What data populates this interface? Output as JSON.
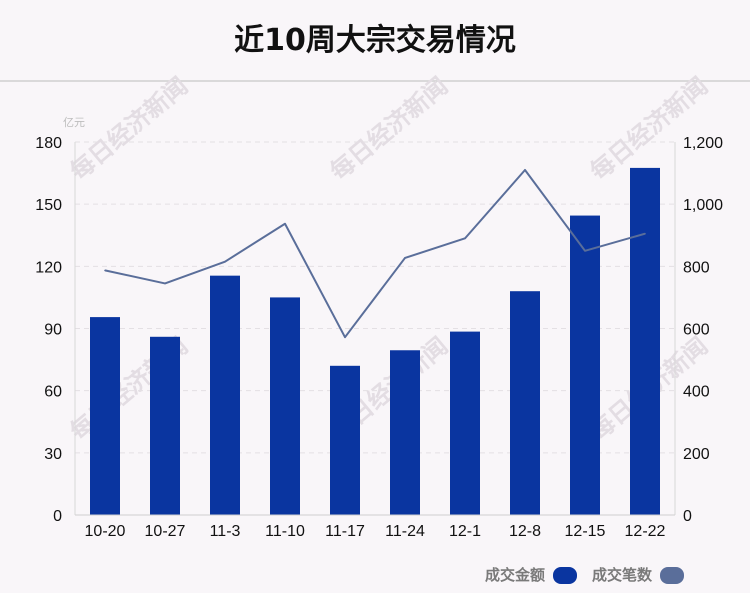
{
  "chart_data": {
    "type": "bar",
    "title": "近10周大宗交易情况",
    "unit_left": "亿元",
    "categories": [
      "10-20",
      "10-27",
      "11-3",
      "11-10",
      "11-17",
      "11-24",
      "12-1",
      "12-8",
      "12-15",
      "12-22"
    ],
    "series": [
      {
        "name": "成交金额",
        "type": "bar",
        "axis": "left",
        "color": "#0a35a0",
        "values": [
          95.5,
          86,
          115.5,
          105,
          72,
          79.5,
          88.5,
          108,
          144.5,
          167.5
        ]
      },
      {
        "name": "成交笔数",
        "type": "line",
        "axis": "right",
        "color": "#5a6e9a",
        "values": [
          787,
          745,
          815,
          937,
          572,
          827,
          890,
          1110,
          850,
          905
        ]
      }
    ],
    "y_left": {
      "ylim": [
        0,
        180
      ],
      "ticks": [
        0,
        30,
        60,
        90,
        120,
        150,
        180
      ]
    },
    "y_right": {
      "ylim": [
        0,
        1200
      ],
      "ticks": [
        0,
        200,
        400,
        600,
        800,
        1000,
        1200
      ],
      "tick_labels": [
        "0",
        "200",
        "400",
        "600",
        "800",
        "1,000",
        "1,200"
      ]
    },
    "grid": true,
    "legend_position": "bottom-right"
  },
  "watermark": "每日经济新闻"
}
